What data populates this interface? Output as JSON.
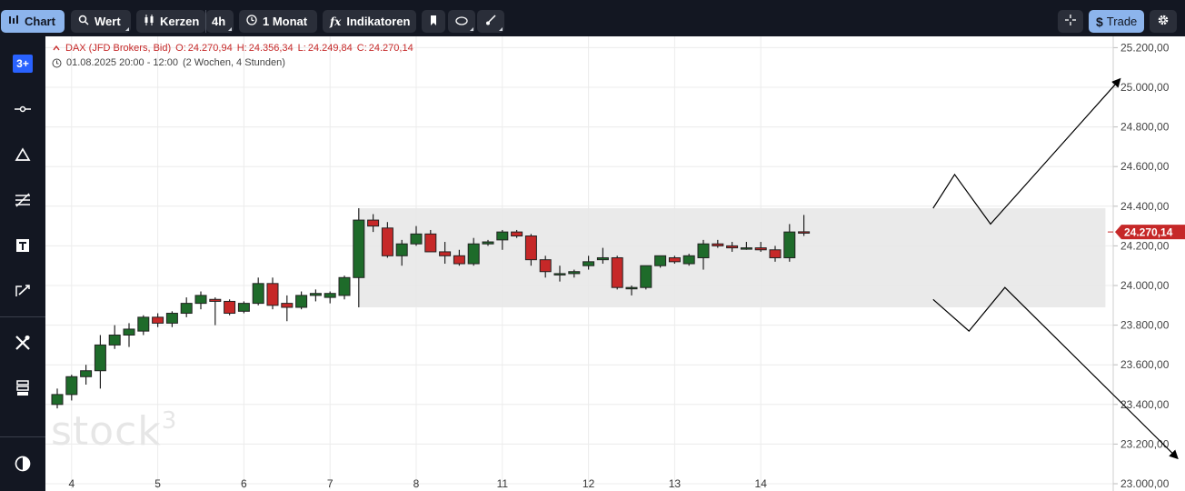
{
  "toolbar": {
    "chart_label": "Chart",
    "value_label": "Wert",
    "candles_label": "Kerzen",
    "interval_label": "4h",
    "range_label": "1 Monat",
    "indicators_label": "Indikatoren",
    "indicators_glyph": "fx",
    "trade_label": "Trade",
    "trade_glyph": "$"
  },
  "sidebar": {
    "badge_label": "3+",
    "icons": [
      "calendar-plus-icon",
      "horizontal-line-icon",
      "triangle-icon",
      "fibonacci-icon",
      "text-icon",
      "pencil-icon",
      "tools-icon",
      "layers-icon",
      "contrast-icon"
    ]
  },
  "legend": {
    "instrument": "DAX (JFD Brokers, Bid)",
    "open_key": "O:",
    "open": "24.270,94",
    "high_key": "H:",
    "high": "24.356,34",
    "low_key": "L:",
    "low": "24.249,84",
    "close_key": "C:",
    "close": "24.270,14",
    "period": "01.08.2025 20:00 - 12:00",
    "period_detail": "(2 Wochen, 4 Stunden)"
  },
  "watermark": {
    "text": "stock",
    "sup": "3"
  },
  "colors": {
    "up": "#1e6b2a",
    "down": "#c62828",
    "panel": "#131722",
    "grid": "#ececec",
    "range_box": "#e8e8e8",
    "price_label_bg": "#c62828"
  },
  "chart_data": {
    "type": "candlestick",
    "y_axis": {
      "ticks": [
        23000,
        23200,
        23400,
        23600,
        23800,
        24000,
        24200,
        24400,
        24600,
        24800,
        25000,
        25200
      ],
      "tick_labels": [
        "23.000,00",
        "23.200,00",
        "23.400,00",
        "23.600,00",
        "23.800,00",
        "24.000,00",
        "24.200,00",
        "24.400,00",
        "24.600,00",
        "24.800,00",
        "25.000,00",
        "25.200,00"
      ],
      "range": [
        23000,
        25300
      ]
    },
    "x_axis": {
      "labels": [
        {
          "label": "4",
          "index": 1
        },
        {
          "label": "5",
          "index": 7
        },
        {
          "label": "6",
          "index": 13
        },
        {
          "label": "7",
          "index": 19
        },
        {
          "label": "8",
          "index": 25
        },
        {
          "label": "11",
          "index": 31
        },
        {
          "label": "12",
          "index": 37
        },
        {
          "label": "13",
          "index": 43
        },
        {
          "label": "14",
          "index": 49
        }
      ],
      "slot_count": 80
    },
    "current_price_label": "24.270,14",
    "current_price": 24270.14,
    "candles": [
      {
        "o": 23400,
        "h": 23480,
        "l": 23380,
        "c": 23450
      },
      {
        "o": 23450,
        "h": 23550,
        "l": 23420,
        "c": 23540
      },
      {
        "o": 23540,
        "h": 23600,
        "l": 23500,
        "c": 23570
      },
      {
        "o": 23570,
        "h": 23750,
        "l": 23480,
        "c": 23700
      },
      {
        "o": 23700,
        "h": 23800,
        "l": 23680,
        "c": 23750
      },
      {
        "o": 23750,
        "h": 23810,
        "l": 23690,
        "c": 23780
      },
      {
        "o": 23770,
        "h": 23850,
        "l": 23750,
        "c": 23840
      },
      {
        "o": 23840,
        "h": 23860,
        "l": 23790,
        "c": 23810
      },
      {
        "o": 23810,
        "h": 23870,
        "l": 23790,
        "c": 23860
      },
      {
        "o": 23860,
        "h": 23940,
        "l": 23840,
        "c": 23910
      },
      {
        "o": 23910,
        "h": 23970,
        "l": 23880,
        "c": 23950
      },
      {
        "o": 23930,
        "h": 23940,
        "l": 23800,
        "c": 23920
      },
      {
        "o": 23920,
        "h": 23930,
        "l": 23850,
        "c": 23860
      },
      {
        "o": 23870,
        "h": 23920,
        "l": 23860,
        "c": 23910
      },
      {
        "o": 23910,
        "h": 24040,
        "l": 23900,
        "c": 24010
      },
      {
        "o": 24010,
        "h": 24040,
        "l": 23880,
        "c": 23900
      },
      {
        "o": 23910,
        "h": 23950,
        "l": 23820,
        "c": 23890
      },
      {
        "o": 23890,
        "h": 23970,
        "l": 23880,
        "c": 23950
      },
      {
        "o": 23950,
        "h": 23980,
        "l": 23920,
        "c": 23960
      },
      {
        "o": 23940,
        "h": 23970,
        "l": 23910,
        "c": 23960
      },
      {
        "o": 23950,
        "h": 24050,
        "l": 23930,
        "c": 24040
      },
      {
        "o": 24040,
        "h": 24390,
        "l": 23890,
        "c": 24330
      },
      {
        "o": 24330,
        "h": 24360,
        "l": 24270,
        "c": 24300
      },
      {
        "o": 24290,
        "h": 24320,
        "l": 24140,
        "c": 24150
      },
      {
        "o": 24150,
        "h": 24230,
        "l": 24100,
        "c": 24210
      },
      {
        "o": 24210,
        "h": 24300,
        "l": 24200,
        "c": 24260
      },
      {
        "o": 24260,
        "h": 24280,
        "l": 24170,
        "c": 24170
      },
      {
        "o": 24170,
        "h": 24220,
        "l": 24110,
        "c": 24150
      },
      {
        "o": 24150,
        "h": 24180,
        "l": 24100,
        "c": 24110
      },
      {
        "o": 24110,
        "h": 24240,
        "l": 24100,
        "c": 24210
      },
      {
        "o": 24210,
        "h": 24230,
        "l": 24200,
        "c": 24220
      },
      {
        "o": 24230,
        "h": 24280,
        "l": 24180,
        "c": 24270
      },
      {
        "o": 24270,
        "h": 24280,
        "l": 24240,
        "c": 24250
      },
      {
        "o": 24250,
        "h": 24260,
        "l": 24100,
        "c": 24130
      },
      {
        "o": 24130,
        "h": 24150,
        "l": 24040,
        "c": 24070
      },
      {
        "o": 24060,
        "h": 24100,
        "l": 24020,
        "c": 24060
      },
      {
        "o": 24060,
        "h": 24080,
        "l": 24040,
        "c": 24070
      },
      {
        "o": 24100,
        "h": 24150,
        "l": 24080,
        "c": 24120
      },
      {
        "o": 24130,
        "h": 24190,
        "l": 24110,
        "c": 24140
      },
      {
        "o": 24140,
        "h": 24150,
        "l": 23980,
        "c": 23990
      },
      {
        "o": 23990,
        "h": 24000,
        "l": 23950,
        "c": 23990
      },
      {
        "o": 23990,
        "h": 24100,
        "l": 23980,
        "c": 24100
      },
      {
        "o": 24100,
        "h": 24150,
        "l": 24090,
        "c": 24150
      },
      {
        "o": 24140,
        "h": 24150,
        "l": 24110,
        "c": 24120
      },
      {
        "o": 24110,
        "h": 24160,
        "l": 24100,
        "c": 24150
      },
      {
        "o": 24140,
        "h": 24230,
        "l": 24080,
        "c": 24210
      },
      {
        "o": 24210,
        "h": 24230,
        "l": 24190,
        "c": 24200
      },
      {
        "o": 24200,
        "h": 24220,
        "l": 24170,
        "c": 24190
      },
      {
        "o": 24190,
        "h": 24220,
        "l": 24180,
        "c": 24190
      },
      {
        "o": 24190,
        "h": 24220,
        "l": 24170,
        "c": 24180
      },
      {
        "o": 24180,
        "h": 24200,
        "l": 24120,
        "c": 24140
      },
      {
        "o": 24140,
        "h": 24310,
        "l": 24120,
        "c": 24270
      },
      {
        "o": 24271,
        "h": 24356,
        "l": 24250,
        "c": 24270
      }
    ],
    "range_box": {
      "index_start": 21,
      "index_end": 73,
      "price_low": 23890,
      "price_high": 24390
    },
    "scenario_up": [
      {
        "i": 61,
        "p": 24390
      },
      {
        "i": 62.5,
        "p": 24560
      },
      {
        "i": 65,
        "p": 24310
      },
      {
        "i": 74,
        "p": 25040
      }
    ],
    "scenario_down": [
      {
        "i": 61,
        "p": 23930
      },
      {
        "i": 63.5,
        "p": 23770
      },
      {
        "i": 66,
        "p": 23990
      },
      {
        "i": 78,
        "p": 23130
      }
    ]
  }
}
